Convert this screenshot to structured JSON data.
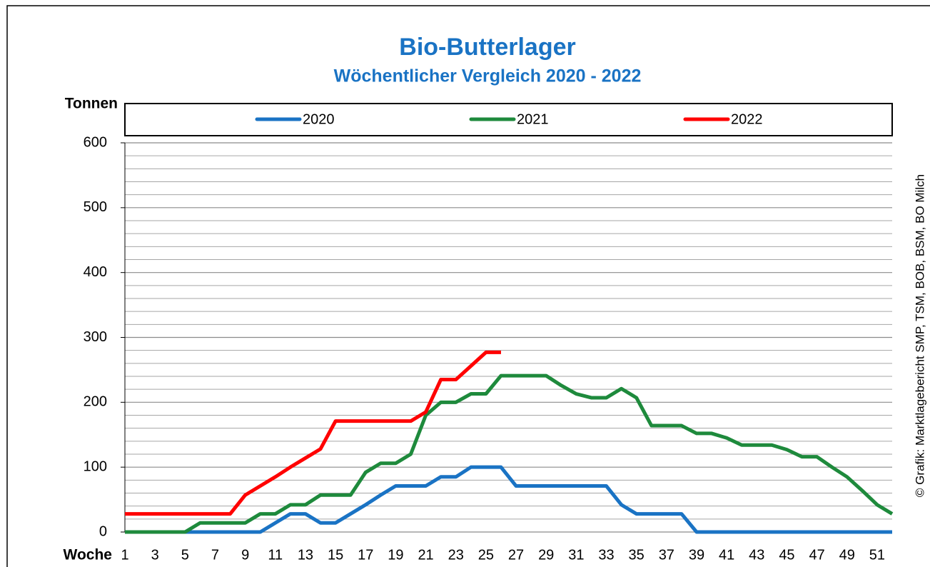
{
  "chart_data": {
    "type": "line",
    "title": "Bio-Butterlager",
    "subtitle": "Wöchentlicher Vergleich 2020 - 2022",
    "y_label": "Tonnen",
    "x_label": "Woche",
    "credit": "© Grafik: Marktlagebericht SMP, TSM, BOB, BSM, BO Milch",
    "categories": [
      "1",
      null,
      "3",
      null,
      "5",
      null,
      "7",
      null,
      "9",
      null,
      "11",
      null,
      "13",
      null,
      "15",
      null,
      "17",
      null,
      "19",
      null,
      "21",
      null,
      "23",
      null,
      "25",
      null,
      "27",
      null,
      "29",
      null,
      "31",
      null,
      "33",
      null,
      "35",
      null,
      "37",
      null,
      "39",
      null,
      "41",
      null,
      "43",
      null,
      "45",
      null,
      "47",
      null,
      "49",
      null,
      "51",
      null
    ],
    "series": [
      {
        "name": "2020",
        "color": "#1a73c4",
        "values": [
          0,
          0,
          0,
          0,
          0,
          0,
          0,
          0,
          0,
          0,
          14,
          28,
          28,
          14,
          14,
          28,
          42,
          57,
          71,
          71,
          71,
          85,
          85,
          100,
          100,
          100,
          71,
          71,
          71,
          71,
          71,
          71,
          71,
          42,
          28,
          28,
          28,
          28,
          0,
          0,
          0,
          0,
          0,
          0,
          0,
          0,
          0,
          0,
          0,
          0,
          0,
          0
        ]
      },
      {
        "name": "2021",
        "color": "#1e8a3c",
        "values": [
          0,
          0,
          0,
          0,
          0,
          14,
          14,
          14,
          14,
          28,
          28,
          42,
          42,
          57,
          57,
          57,
          92,
          106,
          106,
          120,
          180,
          200,
          200,
          213,
          213,
          241,
          241,
          241,
          241,
          226,
          213,
          207,
          207,
          221,
          207,
          164,
          164,
          164,
          152,
          152,
          145,
          134,
          134,
          134,
          127,
          116,
          116,
          100,
          85,
          64,
          42,
          28
        ]
      },
      {
        "name": "2022",
        "color": "#ff0000",
        "values": [
          28,
          28,
          28,
          28,
          28,
          28,
          28,
          28,
          57,
          71,
          85,
          100,
          114,
          128,
          171,
          171,
          171,
          171,
          171,
          171,
          185,
          235,
          235,
          256,
          277,
          277,
          null,
          null,
          null,
          null,
          null,
          null,
          null,
          null,
          null,
          null,
          null,
          null,
          null,
          null,
          null,
          null,
          null,
          null,
          null,
          null,
          null,
          null,
          null,
          null,
          null,
          null
        ]
      }
    ],
    "ylim": [
      0,
      600
    ],
    "yticks": [
      0,
      100,
      200,
      300,
      400,
      500,
      600
    ],
    "y_minor_ticks": [
      20,
      40,
      60,
      80,
      120,
      140,
      160,
      180,
      220,
      240,
      260,
      280,
      320,
      340,
      360,
      380,
      420,
      440,
      460,
      480,
      520,
      540,
      560,
      580
    ],
    "grid": true,
    "legend": "top"
  }
}
